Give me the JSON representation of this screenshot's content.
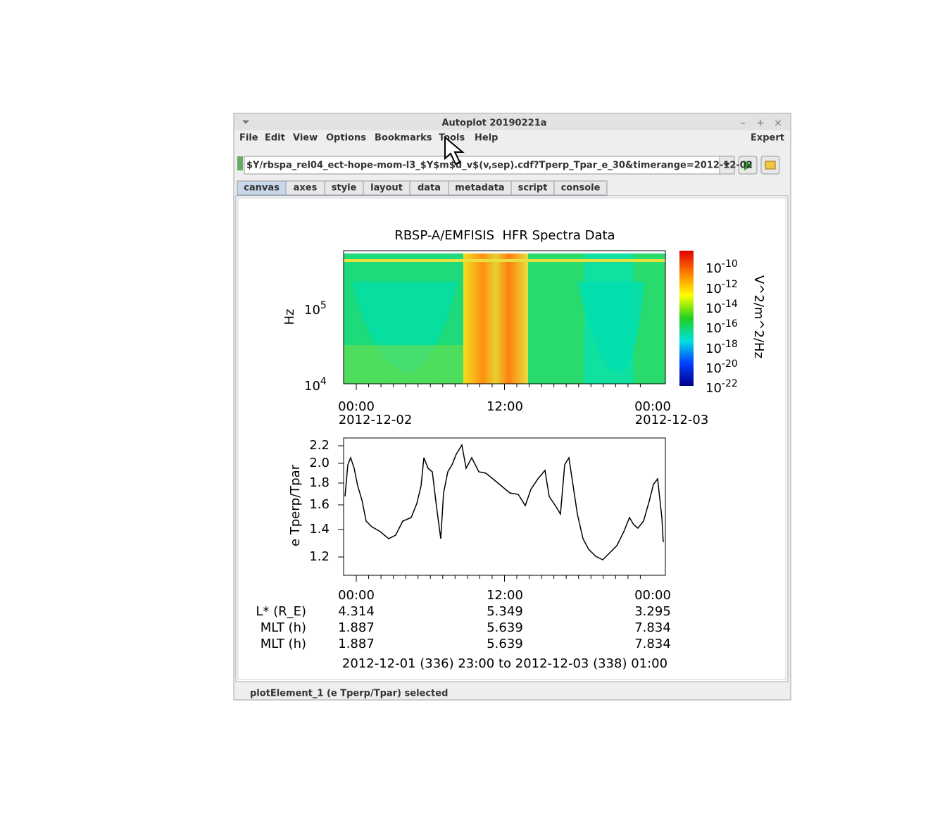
{
  "window": {
    "title": "Autoplot 20190221a"
  },
  "menu": [
    "File",
    "Edit",
    "View",
    "Options",
    "Bookmarks",
    "Tools",
    "Help"
  ],
  "menu_right": "Expert",
  "url": "$Y/rbspa_rel04_ect-hope-mom-l3_$Y$m$d_v$(v,sep).cdf?Tperp_Tpar_e_30&timerange=2012-12-02",
  "tabs": [
    "canvas",
    "axes",
    "style",
    "layout",
    "data",
    "metadata",
    "script",
    "console"
  ],
  "plot1": {
    "title": "RBSP-A/EMFISIS  HFR Spectra Data",
    "ylabel": "Hz",
    "yticks": [
      {
        "base": "10",
        "exp": "5"
      },
      {
        "base": "10",
        "exp": "4"
      }
    ],
    "colorbar_label": "V^2/m^2/Hz",
    "colorbar_ticks": [
      {
        "base": "10",
        "exp": "-10"
      },
      {
        "base": "10",
        "exp": "-12"
      },
      {
        "base": "10",
        "exp": "-14"
      },
      {
        "base": "10",
        "exp": "-16"
      },
      {
        "base": "10",
        "exp": "-18"
      },
      {
        "base": "10",
        "exp": "-20"
      },
      {
        "base": "10",
        "exp": "-22"
      }
    ],
    "xticks": [
      "00:00",
      "12:00",
      "00:00"
    ],
    "xdates": [
      "2012-12-02",
      "2012-12-03"
    ]
  },
  "plot2": {
    "ylabel": "e Tperp/Tpar",
    "yticks": [
      "2.2",
      "2.0",
      "1.8",
      "1.6",
      "1.4",
      "1.2"
    ],
    "xticks": [
      "00:00",
      "12:00",
      "00:00"
    ],
    "ephemeris": [
      {
        "label": "L* (R_E)",
        "values": [
          "4.314",
          "5.349",
          "3.295"
        ]
      },
      {
        "label": "MLT (h)",
        "values": [
          "1.887",
          "5.639",
          "7.834"
        ]
      },
      {
        "label": "MLT (h)",
        "values": [
          "1.887",
          "5.639",
          "7.834"
        ]
      }
    ],
    "range": "2012-12-01 (336) 23:00 to 2012-12-03 (338) 01:00"
  },
  "status": "plotElement_1 (e Tperp/Tpar) selected"
}
